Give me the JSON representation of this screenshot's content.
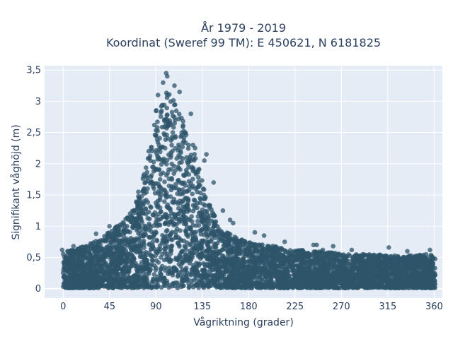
{
  "chart_data": {
    "type": "scatter",
    "title_line1": "År 1979 - 2019",
    "title_line2": "Koordinat (Sweref 99 TM): E 450621, N 6181825",
    "xlabel": "Vågriktning (grader)",
    "ylabel": "Signifikant våghöjd (m)",
    "xlim": [
      -18,
      368
    ],
    "ylim": [
      -0.15,
      3.57
    ],
    "xticks": [
      0,
      45,
      90,
      135,
      180,
      225,
      270,
      315,
      360
    ],
    "xtick_labels": [
      "0",
      "45",
      "90",
      "135",
      "180",
      "225",
      "270",
      "315",
      "360"
    ],
    "yticks": [
      0,
      0.5,
      1,
      1.5,
      2,
      2.5,
      3,
      3.5
    ],
    "ytick_labels": [
      "0",
      "0,5",
      "1",
      "1,5",
      "2",
      "2,5",
      "3",
      "3,5"
    ],
    "grid": true,
    "marker_color": "#2e5469",
    "background_color": "#e5ecf6",
    "envelope": {
      "x": [
        0,
        10,
        20,
        30,
        40,
        50,
        60,
        70,
        75,
        80,
        85,
        90,
        95,
        100,
        105,
        110,
        115,
        120,
        125,
        130,
        135,
        140,
        145,
        150,
        160,
        170,
        180,
        190,
        200,
        210,
        220,
        230,
        240,
        250,
        260,
        270,
        280,
        290,
        300,
        310,
        320,
        330,
        340,
        350,
        360
      ],
      "y_max": [
        0.6,
        0.62,
        0.68,
        0.75,
        0.85,
        0.98,
        1.1,
        1.35,
        1.6,
        1.95,
        2.35,
        2.85,
        3.05,
        3.2,
        3.15,
        3.0,
        2.8,
        2.5,
        2.3,
        2.05,
        1.75,
        1.45,
        1.25,
        1.05,
        0.9,
        0.8,
        0.75,
        0.72,
        0.7,
        0.66,
        0.62,
        0.62,
        0.6,
        0.6,
        0.58,
        0.56,
        0.55,
        0.55,
        0.55,
        0.54,
        0.53,
        0.53,
        0.53,
        0.55,
        0.55
      ]
    },
    "outliers": [
      {
        "x": 100,
        "y": 3.45
      },
      {
        "x": 101,
        "y": 3.4
      },
      {
        "x": 108,
        "y": 3.25
      },
      {
        "x": 113,
        "y": 3.15
      },
      {
        "x": 97,
        "y": 3.3
      },
      {
        "x": 92,
        "y": 3.1
      },
      {
        "x": 124,
        "y": 2.8
      },
      {
        "x": 126,
        "y": 2.3
      },
      {
        "x": 128,
        "y": 2.25
      },
      {
        "x": 139,
        "y": 2.15
      },
      {
        "x": 137,
        "y": 2.05
      },
      {
        "x": 146,
        "y": 1.7
      },
      {
        "x": 155,
        "y": 1.25
      },
      {
        "x": 162,
        "y": 1.1
      },
      {
        "x": 165,
        "y": 1.05
      },
      {
        "x": 186,
        "y": 0.9
      },
      {
        "x": 195,
        "y": 0.85
      },
      {
        "x": 215,
        "y": 0.75
      },
      {
        "x": 243,
        "y": 0.7
      },
      {
        "x": 246,
        "y": 0.7
      },
      {
        "x": 252,
        "y": 0.62
      },
      {
        "x": 262,
        "y": 0.68
      },
      {
        "x": 280,
        "y": 0.62
      },
      {
        "x": 316,
        "y": 0.66
      },
      {
        "x": 334,
        "y": 0.6
      },
      {
        "x": 356,
        "y": 0.62
      },
      {
        "x": -1,
        "y": 0.62
      },
      {
        "x": 10,
        "y": 0.68
      },
      {
        "x": 32,
        "y": 0.88
      },
      {
        "x": 45,
        "y": 1.0
      },
      {
        "x": 65,
        "y": 1.2
      },
      {
        "x": 73,
        "y": 1.55
      },
      {
        "x": 78,
        "y": 1.8
      },
      {
        "x": 83,
        "y": 2.2
      }
    ]
  }
}
